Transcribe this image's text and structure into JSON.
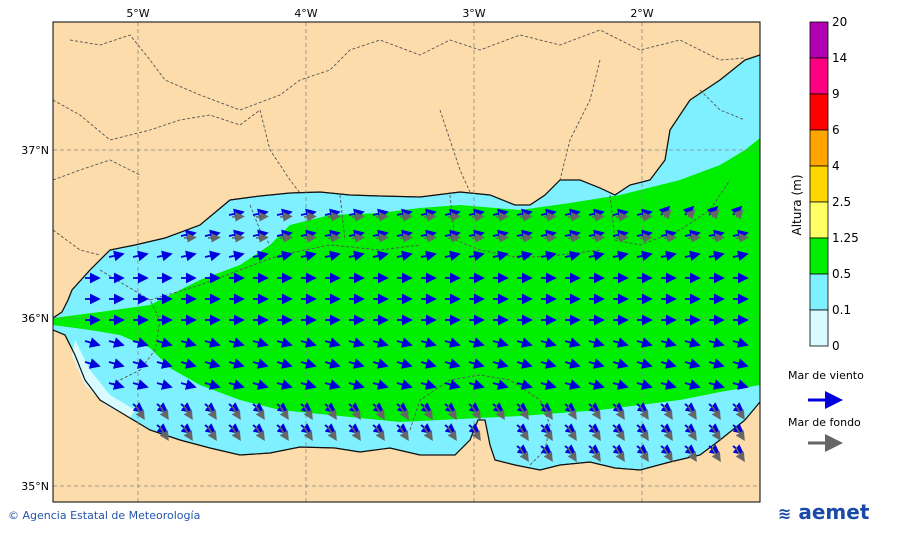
{
  "map": {
    "lon_ticks": [
      "5°W",
      "4°W",
      "3°W",
      "2°W"
    ],
    "lat_ticks": [
      "37°N",
      "36°N",
      "35°N"
    ],
    "colors": {
      "land": "#fcdcaa",
      "sea_0_0.1": "#d8fbff",
      "sea_0.1_0.5": "#7ff0ff",
      "sea_0.5_1.25": "#00ee00"
    }
  },
  "colorbar": {
    "title": "Altura (m)",
    "levels": [
      "20",
      "14",
      "9",
      "6",
      "4",
      "2.5",
      "1.25",
      "0.5",
      "0.1",
      "0"
    ],
    "colors": [
      "#b000b0",
      "#ff0080",
      "#ff0000",
      "#ffa500",
      "#ffd700",
      "#ffff66",
      "#00ee00",
      "#7ff0ff",
      "#d8fbff"
    ]
  },
  "legend": {
    "wind_sea_label": "Mar de viento",
    "wind_sea_color": "#0000dd",
    "swell_label": "Mar de fondo",
    "swell_color": "#555555"
  },
  "footer": {
    "copyright": "Agencia Estatal de Meteorología",
    "logo_text": "aemet"
  }
}
